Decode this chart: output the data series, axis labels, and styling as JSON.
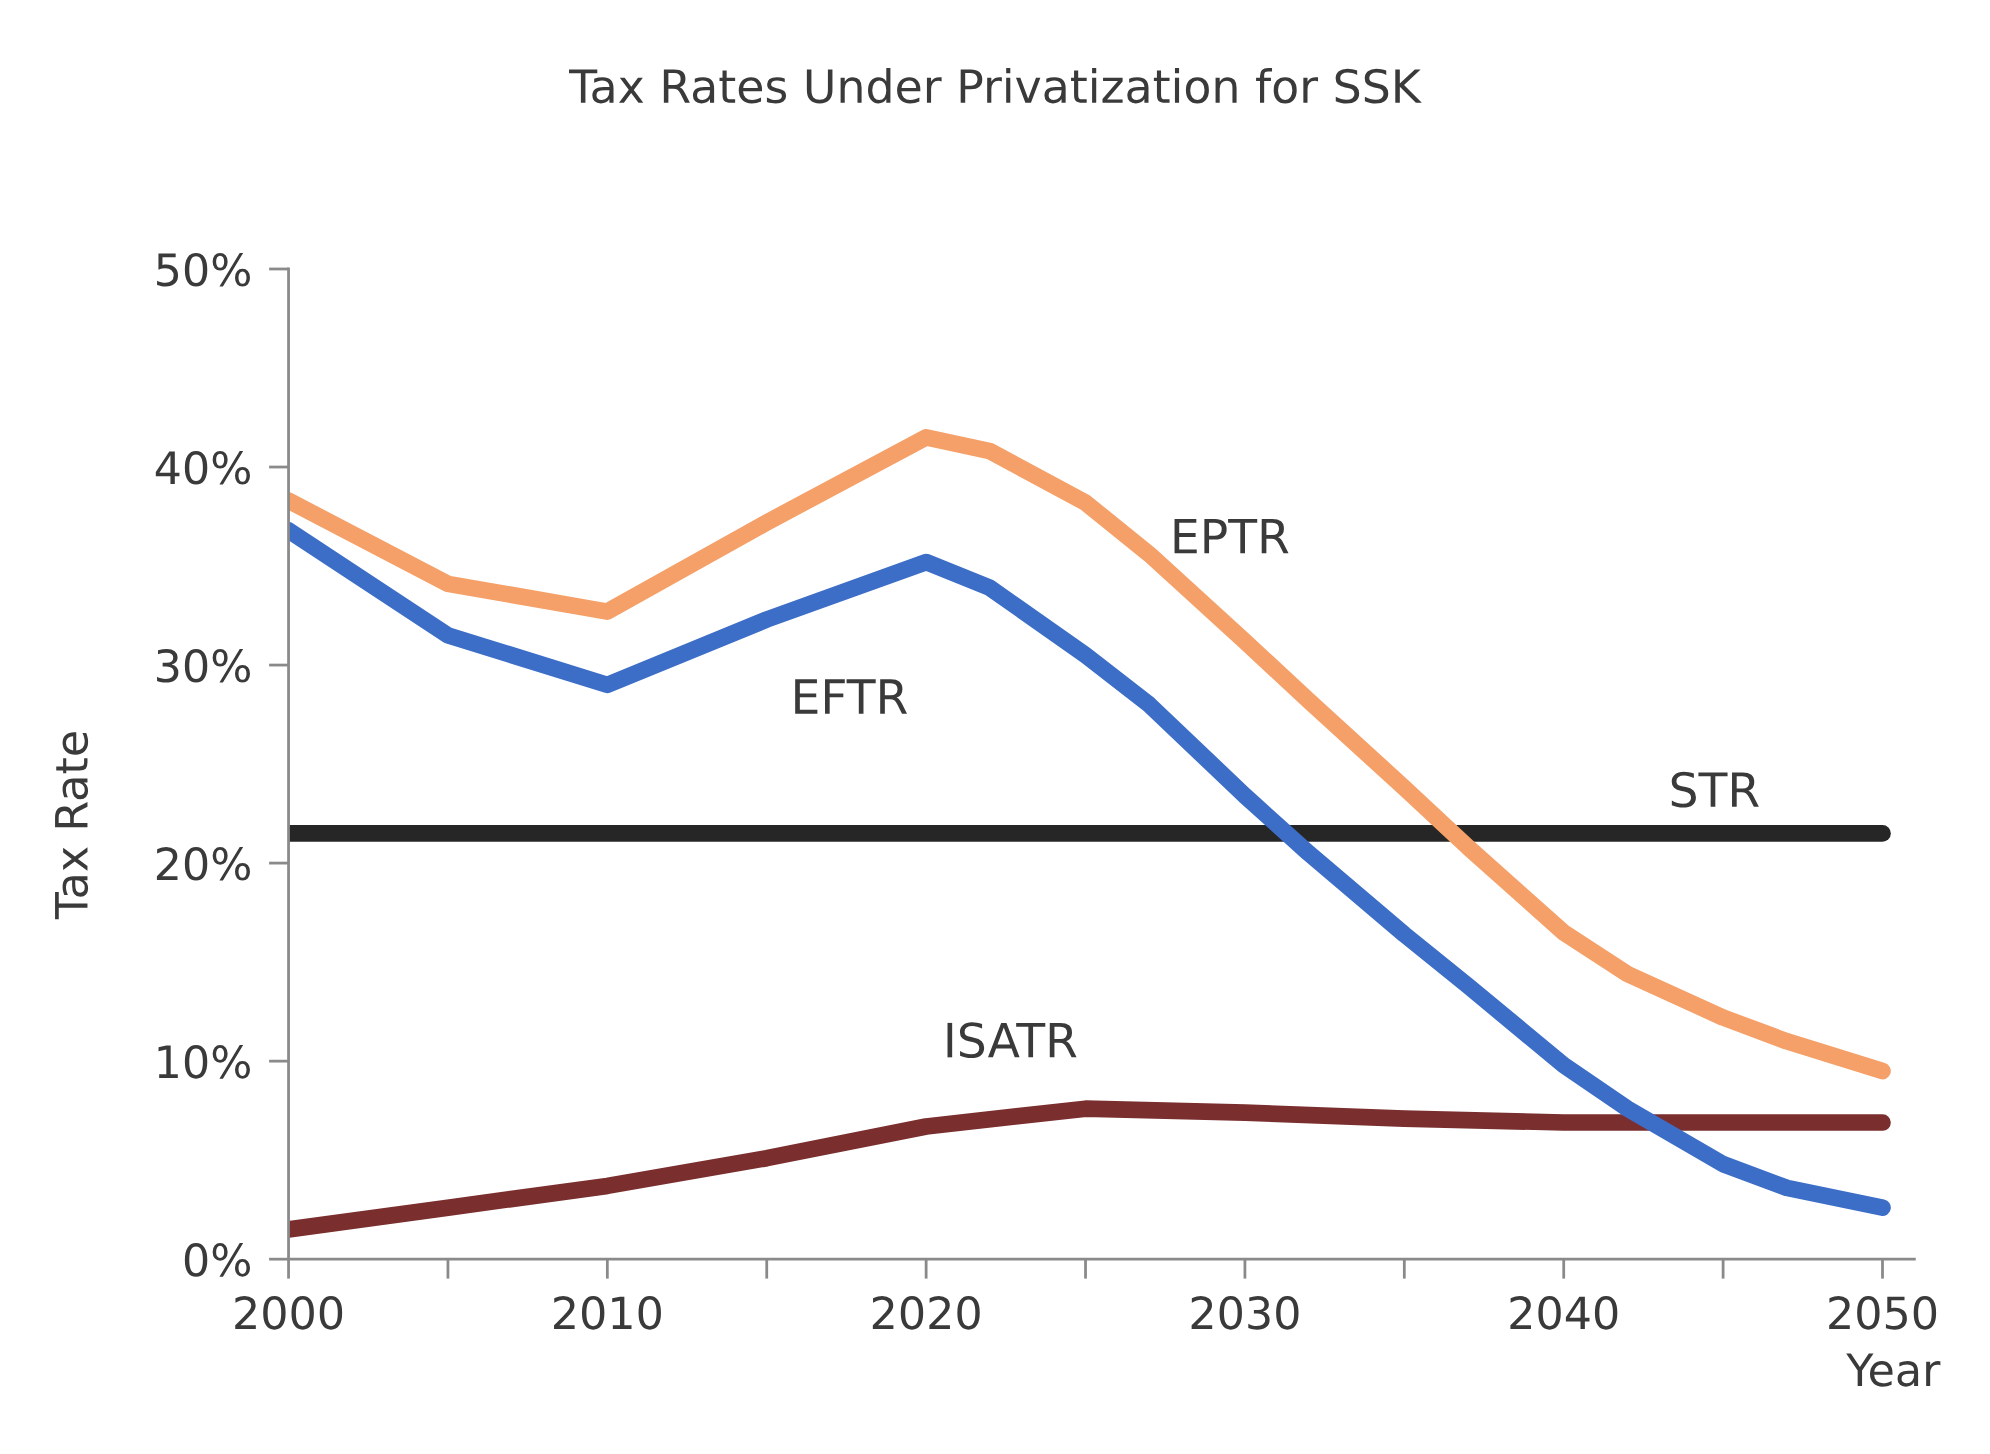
{
  "chart_data": {
    "type": "line",
    "title": "Tax Rates Under Privatization for SSK",
    "xlabel": "Year",
    "ylabel": "Tax Rate",
    "x": [
      2000,
      2005,
      2010,
      2015,
      2020,
      2022,
      2025,
      2027,
      2030,
      2032,
      2035,
      2037,
      2040,
      2042,
      2045,
      2047,
      2050
    ],
    "xlim": [
      2000,
      2051
    ],
    "xticks": [
      2000,
      {
        "value": 2005,
        "label": null
      },
      2010,
      {
        "value": 2015,
        "label": null
      },
      2020,
      {
        "value": 2025,
        "label": null
      },
      2030,
      {
        "value": 2035,
        "label": null
      },
      2040,
      {
        "value": 2045,
        "label": null
      },
      2050
    ],
    "ylim": [
      0,
      50
    ],
    "yticks": [
      {
        "value": 0,
        "label": "0%"
      },
      {
        "value": 10,
        "label": "10%"
      },
      {
        "value": 20,
        "label": "20%"
      },
      {
        "value": 30,
        "label": "30%"
      },
      {
        "value": 40,
        "label": "40%"
      },
      {
        "value": 50,
        "label": "50%"
      }
    ],
    "series": [
      {
        "name": "STR",
        "color": "#262626",
        "x": [
          2000,
          2005,
          2010,
          2015,
          2020,
          2025,
          2030,
          2035,
          2040,
          2045,
          2050
        ],
        "values": [
          21.5,
          21.5,
          21.5,
          21.5,
          21.5,
          21.5,
          21.5,
          21.5,
          21.5,
          21.5,
          21.5
        ]
      },
      {
        "name": "ISATR",
        "color": "#7a2e2e",
        "x": [
          2000,
          2005,
          2010,
          2015,
          2020,
          2025,
          2030,
          2035,
          2040,
          2045,
          2050
        ],
        "values": [
          1.5,
          2.6,
          3.7,
          5.1,
          6.7,
          7.6,
          7.4,
          7.1,
          6.9,
          6.9,
          6.9
        ]
      },
      {
        "name": "EFTR",
        "color": "#3c6ec8",
        "values": [
          36.8,
          31.5,
          29.0,
          32.3,
          35.2,
          33.9,
          30.5,
          28.0,
          23.4,
          20.5,
          16.4,
          13.8,
          9.8,
          7.6,
          4.8,
          3.6,
          2.6
        ]
      },
      {
        "name": "EPTR",
        "color": "#f5a068",
        "values": [
          38.3,
          34.1,
          32.7,
          37.2,
          41.5,
          40.8,
          38.2,
          35.6,
          31.2,
          28.2,
          23.8,
          20.8,
          16.5,
          14.4,
          12.2,
          11.0,
          9.5
        ]
      }
    ]
  }
}
